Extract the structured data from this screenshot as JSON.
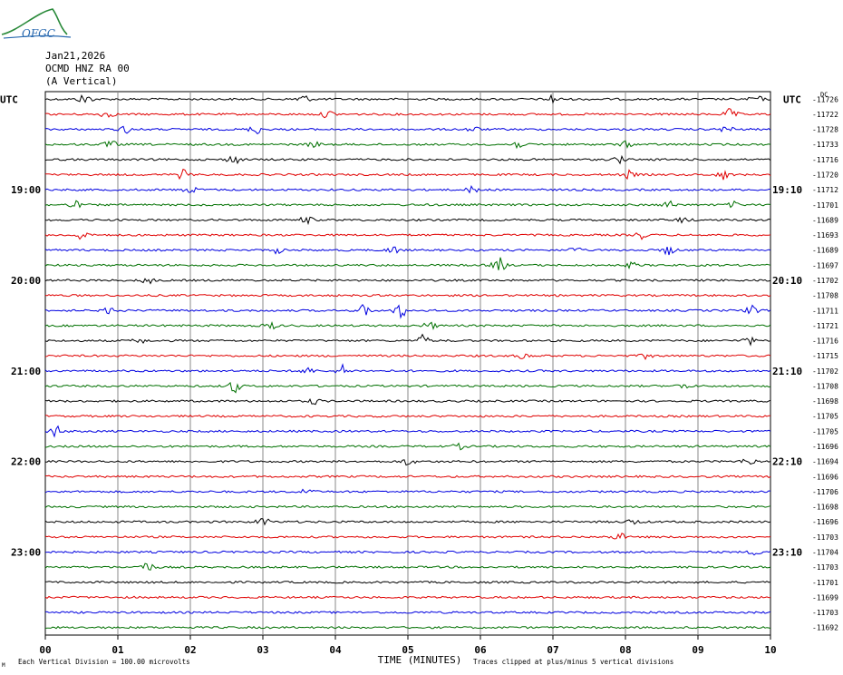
{
  "header": {
    "logo_text": "OFGC",
    "date": "Jan21,2026",
    "station": "OCMD HNZ RA 00",
    "component": "(A Vertical)",
    "utc_left": "UTC",
    "utc_right": "UTC",
    "dc_label": "DC"
  },
  "chart_data": {
    "type": "line",
    "title": "",
    "xlabel": "TIME (MINUTES)",
    "x_ticks": [
      "00",
      "01",
      "02",
      "03",
      "04",
      "05",
      "06",
      "07",
      "08",
      "09",
      "10"
    ],
    "xlim": [
      0,
      10
    ],
    "trace_colors": [
      "#000000",
      "#e00000",
      "#0000e0",
      "#007000"
    ],
    "left_hour_labels": [
      {
        "row": 6,
        "label": "19:00"
      },
      {
        "row": 12,
        "label": "20:00"
      },
      {
        "row": 18,
        "label": "21:00"
      },
      {
        "row": 24,
        "label": "22:00"
      },
      {
        "row": 30,
        "label": "23:00"
      }
    ],
    "right_hour_labels": [
      {
        "row": 6,
        "label": "19:10"
      },
      {
        "row": 12,
        "label": "20:10"
      },
      {
        "row": 18,
        "label": "21:10"
      },
      {
        "row": 24,
        "label": "22:10"
      },
      {
        "row": 30,
        "label": "23:10"
      }
    ],
    "dc_offsets": [
      "-11726",
      "-11722",
      "-11728",
      "-11733",
      "-11716",
      "-11720",
      "-11712",
      "-11701",
      "-11689",
      "-11693",
      "-11689",
      "-11697",
      "-11702",
      "-11708",
      "-11711",
      "-11721",
      "-11716",
      "-11715",
      "-11702",
      "-11708",
      "-11698",
      "-11705",
      "-11705",
      "-11696",
      "-11694",
      "-11696",
      "-11706",
      "-11698",
      "-11696",
      "-11703",
      "-11704",
      "-11703",
      "-11701",
      "-11699",
      "-11703",
      "-11692"
    ],
    "bursts": [
      {
        "row": 0,
        "t": 0.55,
        "a": 6
      },
      {
        "row": 0,
        "t": 3.55,
        "a": 5
      },
      {
        "row": 0,
        "t": 7.0,
        "a": 5
      },
      {
        "row": 0,
        "t": 9.8,
        "a": 4
      },
      {
        "row": 1,
        "t": 0.85,
        "a": 4
      },
      {
        "row": 1,
        "t": 3.9,
        "a": 4
      },
      {
        "row": 1,
        "t": 9.45,
        "a": 6
      },
      {
        "row": 2,
        "t": 1.1,
        "a": 4
      },
      {
        "row": 2,
        "t": 2.9,
        "a": 5
      },
      {
        "row": 2,
        "t": 5.9,
        "a": 3
      },
      {
        "row": 2,
        "t": 9.4,
        "a": 4
      },
      {
        "row": 3,
        "t": 0.9,
        "a": 4
      },
      {
        "row": 3,
        "t": 3.7,
        "a": 3
      },
      {
        "row": 3,
        "t": 6.5,
        "a": 4
      },
      {
        "row": 3,
        "t": 8.0,
        "a": 3
      },
      {
        "row": 4,
        "t": 2.6,
        "a": 5
      },
      {
        "row": 4,
        "t": 7.9,
        "a": 4
      },
      {
        "row": 5,
        "t": 1.9,
        "a": 5
      },
      {
        "row": 5,
        "t": 8.05,
        "a": 4
      },
      {
        "row": 5,
        "t": 9.35,
        "a": 5
      },
      {
        "row": 6,
        "t": 2.0,
        "a": 4
      },
      {
        "row": 6,
        "t": 5.9,
        "a": 4
      },
      {
        "row": 7,
        "t": 0.4,
        "a": 4
      },
      {
        "row": 7,
        "t": 8.6,
        "a": 4
      },
      {
        "row": 7,
        "t": 9.5,
        "a": 3
      },
      {
        "row": 8,
        "t": 3.6,
        "a": 4
      },
      {
        "row": 8,
        "t": 8.8,
        "a": 3
      },
      {
        "row": 9,
        "t": 0.5,
        "a": 5
      },
      {
        "row": 9,
        "t": 8.2,
        "a": 4
      },
      {
        "row": 10,
        "t": 3.2,
        "a": 3
      },
      {
        "row": 10,
        "t": 4.8,
        "a": 4
      },
      {
        "row": 10,
        "t": 7.3,
        "a": 3
      },
      {
        "row": 10,
        "t": 8.6,
        "a": 5
      },
      {
        "row": 11,
        "t": 6.25,
        "a": 9
      },
      {
        "row": 11,
        "t": 8.1,
        "a": 3
      },
      {
        "row": 12,
        "t": 1.4,
        "a": 4
      },
      {
        "row": 14,
        "t": 0.9,
        "a": 4
      },
      {
        "row": 14,
        "t": 4.4,
        "a": 6
      },
      {
        "row": 14,
        "t": 4.9,
        "a": 8
      },
      {
        "row": 14,
        "t": 9.75,
        "a": 5
      },
      {
        "row": 15,
        "t": 3.1,
        "a": 4
      },
      {
        "row": 15,
        "t": 5.3,
        "a": 4
      },
      {
        "row": 16,
        "t": 1.3,
        "a": 3
      },
      {
        "row": 16,
        "t": 5.2,
        "a": 6
      },
      {
        "row": 16,
        "t": 9.7,
        "a": 4
      },
      {
        "row": 17,
        "t": 6.6,
        "a": 3
      },
      {
        "row": 17,
        "t": 8.3,
        "a": 3
      },
      {
        "row": 18,
        "t": 3.6,
        "a": 4
      },
      {
        "row": 18,
        "t": 4.1,
        "a": 6
      },
      {
        "row": 19,
        "t": 2.6,
        "a": 7
      },
      {
        "row": 19,
        "t": 8.8,
        "a": 3
      },
      {
        "row": 20,
        "t": 3.7,
        "a": 3
      },
      {
        "row": 22,
        "t": 0.15,
        "a": 6
      },
      {
        "row": 23,
        "t": 5.7,
        "a": 3
      },
      {
        "row": 24,
        "t": 5.0,
        "a": 4
      },
      {
        "row": 24,
        "t": 9.7,
        "a": 5
      },
      {
        "row": 26,
        "t": 3.6,
        "a": 4
      },
      {
        "row": 28,
        "t": 3.0,
        "a": 5
      },
      {
        "row": 28,
        "t": 8.1,
        "a": 3
      },
      {
        "row": 29,
        "t": 7.9,
        "a": 5
      },
      {
        "row": 30,
        "t": 9.8,
        "a": 3
      },
      {
        "row": 31,
        "t": 1.4,
        "a": 6
      }
    ],
    "footer_left": "Each Vertical Division =  100.00 microvolts",
    "footer_right": "Traces clipped at plus/minus 5 vertical divisions",
    "footer_mark": "M"
  }
}
